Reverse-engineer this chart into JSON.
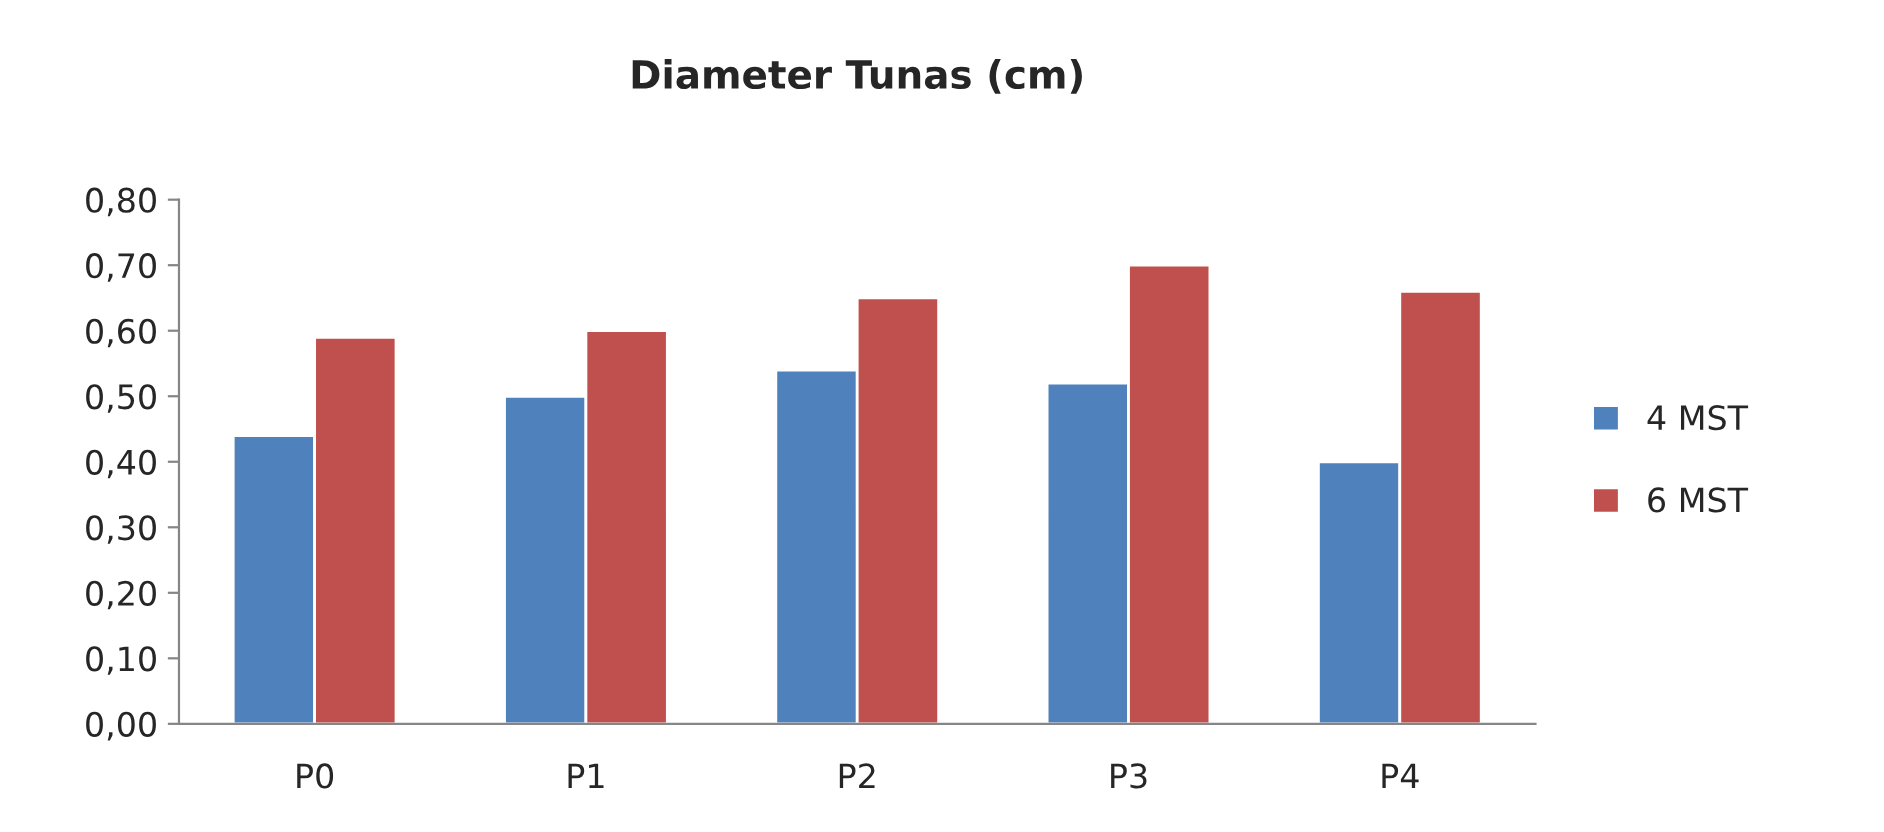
{
  "chart_data": {
    "type": "bar",
    "title": "Diameter Tunas (cm)",
    "categories": [
      "P0",
      "P1",
      "P2",
      "P3",
      "P4"
    ],
    "series": [
      {
        "name": "4 MST",
        "color": "#4f81bd",
        "values": [
          0.44,
          0.5,
          0.54,
          0.52,
          0.4
        ]
      },
      {
        "name": "6 MST",
        "color": "#c0504d",
        "values": [
          0.59,
          0.6,
          0.65,
          0.7,
          0.66
        ]
      }
    ],
    "ylim": [
      0,
      0.8
    ],
    "yticks": [
      {
        "value": 0,
        "label": "0,00"
      },
      {
        "value": 0.1,
        "label": "0,10"
      },
      {
        "value": 0.2,
        "label": "0,20"
      },
      {
        "value": 0.3,
        "label": "0,30"
      },
      {
        "value": 0.4,
        "label": "0,40"
      },
      {
        "value": 0.5,
        "label": "0,50"
      },
      {
        "value": 0.6,
        "label": "0,60"
      },
      {
        "value": 0.7,
        "label": "0,70"
      },
      {
        "value": 0.8,
        "label": "0,80"
      }
    ],
    "grid": false,
    "legend": "right"
  }
}
